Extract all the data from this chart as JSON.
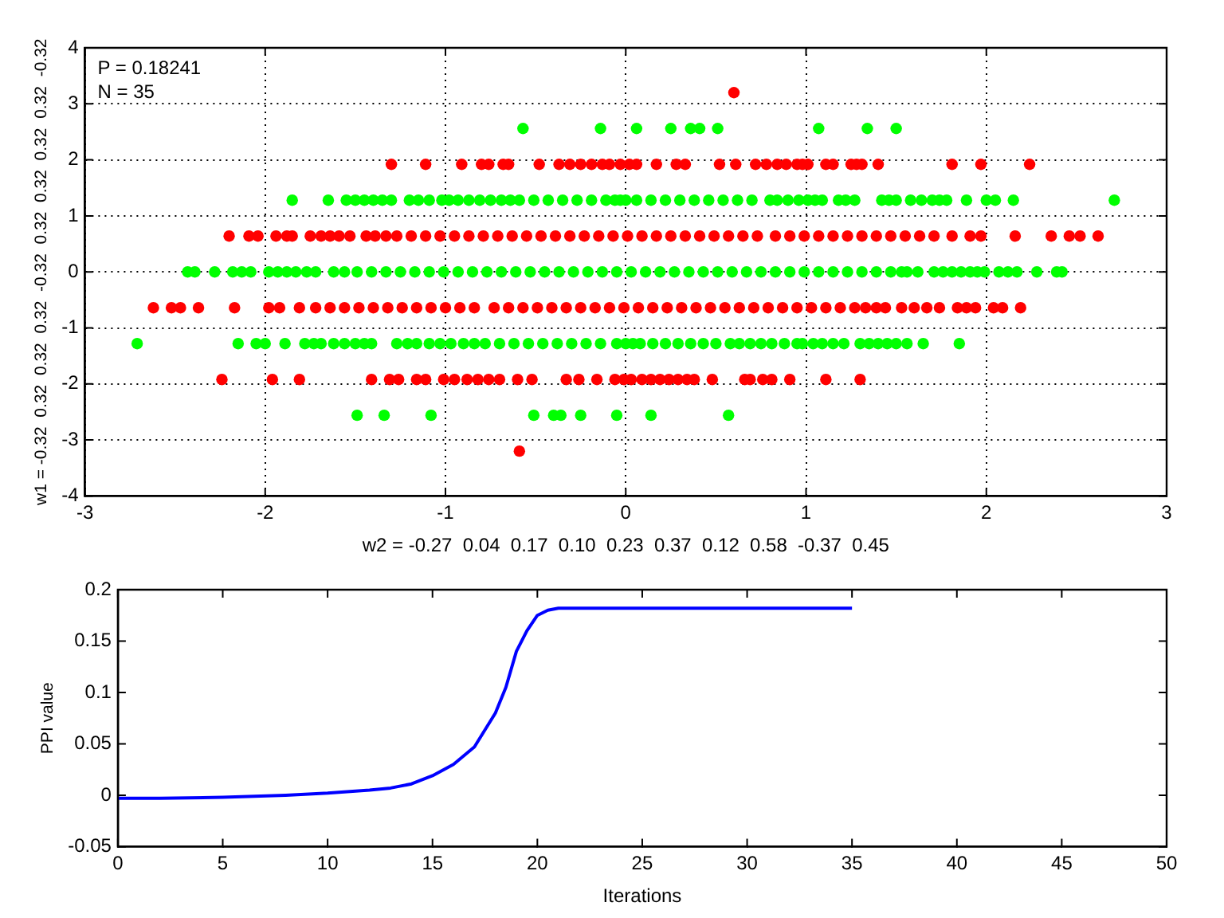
{
  "chart_data": [
    {
      "type": "scatter",
      "xlabel": "w2 = -0.27  0.04  0.17  0.10  0.23  0.37  0.12  0.58  -0.37  0.45",
      "ylabel": "w1 = -0.32  0.32  0.32  0.32  -0.32  0.32  0.32  0.32  0.32  -0.32",
      "annotations": [
        "P = 0.18241",
        "N = 35"
      ],
      "xlim": [
        -3,
        3
      ],
      "xticks": [
        -3,
        -2,
        -1,
        0,
        1,
        2,
        3
      ],
      "ylim": [
        -4,
        4
      ],
      "yticks": [
        -4,
        -3,
        -2,
        -1,
        0,
        1,
        2,
        3,
        4
      ],
      "grid": true,
      "legend": false,
      "marker": "circle",
      "series": [
        {
          "color": "#ff0000",
          "x": [
            0.6
          ],
          "values": [
            3.2
          ]
        },
        {
          "color": "#00ff00",
          "x": [
            -0.57,
            -0.14,
            0.06,
            0.25,
            0.36,
            0.41,
            0.51,
            1.07,
            1.34,
            1.5
          ],
          "values": [
            2.56,
            2.56,
            2.56,
            2.56,
            2.56,
            2.56,
            2.56,
            2.56,
            2.56,
            2.56
          ]
        },
        {
          "color": "#ff0000",
          "x": [
            -1.3,
            -1.11,
            -0.91,
            -0.8,
            -0.76,
            -0.68,
            -0.65,
            -0.48,
            -0.37,
            -0.31,
            -0.25,
            -0.19,
            -0.13,
            -0.09,
            -0.03,
            0.02,
            0.06,
            0.17,
            0.28,
            0.33,
            0.52,
            0.61,
            0.72,
            0.78,
            0.84,
            0.89,
            0.95,
            0.98,
            1.01,
            1.11,
            1.15,
            1.25,
            1.28,
            1.31,
            1.4,
            1.81,
            1.97,
            2.24
          ],
          "values": [
            1.92,
            1.92,
            1.92,
            1.92,
            1.92,
            1.92,
            1.92,
            1.92,
            1.92,
            1.92,
            1.92,
            1.92,
            1.92,
            1.92,
            1.92,
            1.92,
            1.92,
            1.92,
            1.92,
            1.92,
            1.92,
            1.92,
            1.92,
            1.92,
            1.92,
            1.92,
            1.92,
            1.92,
            1.92,
            1.92,
            1.92,
            1.92,
            1.92,
            1.92,
            1.92,
            1.92,
            1.92,
            1.92
          ]
        },
        {
          "color": "#00ff00",
          "x": [
            -1.85,
            -1.65,
            -1.55,
            -1.5,
            -1.45,
            -1.4,
            -1.35,
            -1.3,
            -1.2,
            -1.15,
            -1.09,
            -1.02,
            -0.98,
            -0.93,
            -0.87,
            -0.81,
            -0.75,
            -0.69,
            -0.64,
            -0.59,
            -0.51,
            -0.43,
            -0.35,
            -0.27,
            -0.19,
            -0.11,
            -0.06,
            -0.03,
            0.0,
            0.06,
            0.14,
            0.22,
            0.3,
            0.38,
            0.46,
            0.54,
            0.62,
            0.7,
            0.8,
            0.84,
            0.9,
            0.96,
            1.01,
            1.05,
            1.09,
            1.18,
            1.22,
            1.27,
            1.42,
            1.46,
            1.5,
            1.58,
            1.64,
            1.7,
            1.74,
            1.78,
            1.89,
            2.0,
            2.05,
            2.15,
            2.71
          ],
          "values": [
            1.28,
            1.28,
            1.28,
            1.28,
            1.28,
            1.28,
            1.28,
            1.28,
            1.28,
            1.28,
            1.28,
            1.28,
            1.28,
            1.28,
            1.28,
            1.28,
            1.28,
            1.28,
            1.28,
            1.28,
            1.28,
            1.28,
            1.28,
            1.28,
            1.28,
            1.28,
            1.28,
            1.28,
            1.28,
            1.28,
            1.28,
            1.28,
            1.28,
            1.28,
            1.28,
            1.28,
            1.28,
            1.28,
            1.28,
            1.28,
            1.28,
            1.28,
            1.28,
            1.28,
            1.28,
            1.28,
            1.28,
            1.28,
            1.28,
            1.28,
            1.28,
            1.28,
            1.28,
            1.28,
            1.28,
            1.28,
            1.28,
            1.28,
            1.28,
            1.28,
            1.28
          ]
        },
        {
          "color": "#ff0000",
          "x": [
            -2.2,
            -2.09,
            -2.04,
            -1.94,
            -1.88,
            -1.85,
            -1.75,
            -1.69,
            -1.64,
            -1.59,
            -1.53,
            -1.44,
            -1.39,
            -1.33,
            -1.27,
            -1.19,
            -1.11,
            -1.03,
            -0.95,
            -0.87,
            -0.79,
            -0.71,
            -0.63,
            -0.55,
            -0.47,
            -0.39,
            -0.31,
            -0.23,
            -0.15,
            -0.07,
            0.01,
            0.09,
            0.17,
            0.25,
            0.33,
            0.41,
            0.49,
            0.57,
            0.65,
            0.73,
            0.83,
            0.91,
            0.99,
            1.07,
            1.15,
            1.23,
            1.31,
            1.39,
            1.47,
            1.55,
            1.63,
            1.71,
            1.81,
            1.91,
            1.97,
            2.16,
            2.36,
            2.46,
            2.52,
            2.62
          ],
          "values": [
            0.64,
            0.64,
            0.64,
            0.64,
            0.64,
            0.64,
            0.64,
            0.64,
            0.64,
            0.64,
            0.64,
            0.64,
            0.64,
            0.64,
            0.64,
            0.64,
            0.64,
            0.64,
            0.64,
            0.64,
            0.64,
            0.64,
            0.64,
            0.64,
            0.64,
            0.64,
            0.64,
            0.64,
            0.64,
            0.64,
            0.64,
            0.64,
            0.64,
            0.64,
            0.64,
            0.64,
            0.64,
            0.64,
            0.64,
            0.64,
            0.64,
            0.64,
            0.64,
            0.64,
            0.64,
            0.64,
            0.64,
            0.64,
            0.64,
            0.64,
            0.64,
            0.64,
            0.64,
            0.64,
            0.64,
            0.64,
            0.64,
            0.64,
            0.64,
            0.64
          ]
        },
        {
          "color": "#00ff00",
          "x": [
            -2.43,
            -2.39,
            -2.28,
            -2.18,
            -2.13,
            -2.08,
            -1.98,
            -1.93,
            -1.88,
            -1.83,
            -1.77,
            -1.72,
            -1.62,
            -1.56,
            -1.49,
            -1.41,
            -1.33,
            -1.25,
            -1.17,
            -1.09,
            -1.01,
            -0.93,
            -0.85,
            -0.77,
            -0.69,
            -0.61,
            -0.53,
            -0.45,
            -0.37,
            -0.29,
            -0.21,
            -0.13,
            -0.05,
            0.03,
            0.11,
            0.19,
            0.27,
            0.35,
            0.43,
            0.51,
            0.59,
            0.67,
            0.75,
            0.83,
            0.91,
            0.99,
            1.07,
            1.15,
            1.23,
            1.31,
            1.39,
            1.47,
            1.53,
            1.56,
            1.62,
            1.71,
            1.76,
            1.81,
            1.86,
            1.91,
            1.95,
            1.99,
            2.07,
            2.12,
            2.17,
            2.28,
            2.39,
            2.42
          ],
          "values": [
            0,
            0,
            0,
            0,
            0,
            0,
            0,
            0,
            0,
            0,
            0,
            0,
            0,
            0,
            0,
            0,
            0,
            0,
            0,
            0,
            0,
            0,
            0,
            0,
            0,
            0,
            0,
            0,
            0,
            0,
            0,
            0,
            0,
            0,
            0,
            0,
            0,
            0,
            0,
            0,
            0,
            0,
            0,
            0,
            0,
            0,
            0,
            0,
            0,
            0,
            0,
            0,
            0,
            0,
            0,
            0,
            0,
            0,
            0,
            0,
            0,
            0,
            0,
            0,
            0,
            0,
            0,
            0
          ]
        },
        {
          "color": "#ff0000",
          "x": [
            -2.62,
            -2.52,
            -2.47,
            -2.37,
            -2.17,
            -1.98,
            -1.92,
            -1.81,
            -1.72,
            -1.64,
            -1.56,
            -1.48,
            -1.4,
            -1.32,
            -1.24,
            -1.16,
            -1.08,
            -1.0,
            -0.92,
            -0.84,
            -0.73,
            -0.65,
            -0.57,
            -0.49,
            -0.41,
            -0.33,
            -0.25,
            -0.17,
            -0.09,
            -0.01,
            0.07,
            0.15,
            0.23,
            0.31,
            0.39,
            0.47,
            0.55,
            0.63,
            0.71,
            0.79,
            0.87,
            0.95,
            1.03,
            1.11,
            1.19,
            1.27,
            1.33,
            1.39,
            1.44,
            1.53,
            1.6,
            1.67,
            1.74,
            1.84,
            1.89,
            1.94,
            2.04,
            2.09,
            2.19
          ],
          "values": [
            -0.64,
            -0.64,
            -0.64,
            -0.64,
            -0.64,
            -0.64,
            -0.64,
            -0.64,
            -0.64,
            -0.64,
            -0.64,
            -0.64,
            -0.64,
            -0.64,
            -0.64,
            -0.64,
            -0.64,
            -0.64,
            -0.64,
            -0.64,
            -0.64,
            -0.64,
            -0.64,
            -0.64,
            -0.64,
            -0.64,
            -0.64,
            -0.64,
            -0.64,
            -0.64,
            -0.64,
            -0.64,
            -0.64,
            -0.64,
            -0.64,
            -0.64,
            -0.64,
            -0.64,
            -0.64,
            -0.64,
            -0.64,
            -0.64,
            -0.64,
            -0.64,
            -0.64,
            -0.64,
            -0.64,
            -0.64,
            -0.64,
            -0.64,
            -0.64,
            -0.64,
            -0.64,
            -0.64,
            -0.64,
            -0.64,
            -0.64,
            -0.64,
            -0.64
          ]
        },
        {
          "color": "#00ff00",
          "x": [
            -2.71,
            -2.15,
            -2.05,
            -2.0,
            -1.89,
            -1.78,
            -1.73,
            -1.69,
            -1.62,
            -1.56,
            -1.5,
            -1.45,
            -1.41,
            -1.27,
            -1.21,
            -1.16,
            -1.09,
            -1.03,
            -0.97,
            -0.9,
            -0.84,
            -0.78,
            -0.7,
            -0.62,
            -0.54,
            -0.46,
            -0.38,
            -0.3,
            -0.22,
            -0.14,
            -0.05,
            0.0,
            0.04,
            0.08,
            0.15,
            0.22,
            0.29,
            0.36,
            0.43,
            0.5,
            0.58,
            0.63,
            0.69,
            0.75,
            0.81,
            0.88,
            0.95,
            0.98,
            1.04,
            1.09,
            1.15,
            1.21,
            1.3,
            1.35,
            1.4,
            1.45,
            1.5,
            1.56,
            1.65,
            1.85
          ],
          "values": [
            -1.28,
            -1.28,
            -1.28,
            -1.28,
            -1.28,
            -1.28,
            -1.28,
            -1.28,
            -1.28,
            -1.28,
            -1.28,
            -1.28,
            -1.28,
            -1.28,
            -1.28,
            -1.28,
            -1.28,
            -1.28,
            -1.28,
            -1.28,
            -1.28,
            -1.28,
            -1.28,
            -1.28,
            -1.28,
            -1.28,
            -1.28,
            -1.28,
            -1.28,
            -1.28,
            -1.28,
            -1.28,
            -1.28,
            -1.28,
            -1.28,
            -1.28,
            -1.28,
            -1.28,
            -1.28,
            -1.28,
            -1.28,
            -1.28,
            -1.28,
            -1.28,
            -1.28,
            -1.28,
            -1.28,
            -1.28,
            -1.28,
            -1.28,
            -1.28,
            -1.28,
            -1.28,
            -1.28,
            -1.28,
            -1.28,
            -1.28,
            -1.28,
            -1.28,
            -1.28
          ]
        },
        {
          "color": "#ff0000",
          "x": [
            -2.24,
            -1.96,
            -1.81,
            -1.41,
            -1.31,
            -1.26,
            -1.16,
            -1.11,
            -1.01,
            -0.95,
            -0.88,
            -0.82,
            -0.76,
            -0.7,
            -0.6,
            -0.52,
            -0.33,
            -0.26,
            -0.16,
            -0.06,
            -0.01,
            0.03,
            0.09,
            0.14,
            0.19,
            0.24,
            0.29,
            0.34,
            0.38,
            0.48,
            0.66,
            0.69,
            0.76,
            0.81,
            0.91,
            1.11,
            1.3
          ],
          "values": [
            -1.92,
            -1.92,
            -1.92,
            -1.92,
            -1.92,
            -1.92,
            -1.92,
            -1.92,
            -1.92,
            -1.92,
            -1.92,
            -1.92,
            -1.92,
            -1.92,
            -1.92,
            -1.92,
            -1.92,
            -1.92,
            -1.92,
            -1.92,
            -1.92,
            -1.92,
            -1.92,
            -1.92,
            -1.92,
            -1.92,
            -1.92,
            -1.92,
            -1.92,
            -1.92,
            -1.92,
            -1.92,
            -1.92,
            -1.92,
            -1.92,
            -1.92,
            -1.92
          ]
        },
        {
          "color": "#00ff00",
          "x": [
            -1.49,
            -1.34,
            -1.08,
            -0.51,
            -0.4,
            -0.36,
            -0.25,
            -0.05,
            0.14,
            0.57
          ],
          "values": [
            -2.56,
            -2.56,
            -2.56,
            -2.56,
            -2.56,
            -2.56,
            -2.56,
            -2.56,
            -2.56,
            -2.56
          ]
        },
        {
          "color": "#ff0000",
          "x": [
            -0.59
          ],
          "values": [
            -3.2
          ]
        }
      ]
    },
    {
      "type": "line",
      "xlabel": "Iterations",
      "ylabel": "PPI value",
      "xlim": [
        0,
        50
      ],
      "xticks": [
        0,
        5,
        10,
        15,
        20,
        25,
        30,
        35,
        40,
        45,
        50
      ],
      "ylim": [
        -0.05,
        0.2
      ],
      "yticks": [
        -0.05,
        0,
        0.05,
        0.1,
        0.15,
        0.2
      ],
      "legend": false,
      "marker": "none",
      "line_style": "solid",
      "x": [
        0,
        2,
        5,
        8,
        10,
        12,
        13,
        14,
        15,
        16,
        17,
        18,
        18.5,
        19,
        19.5,
        20,
        20.5,
        21,
        35
      ],
      "series": [
        {
          "color": "#0000ff",
          "values": [
            -0.003,
            -0.003,
            -0.002,
            0,
            0.002,
            0.005,
            0.007,
            0.011,
            0.019,
            0.03,
            0.047,
            0.08,
            0.105,
            0.14,
            0.16,
            0.175,
            0.18,
            0.182,
            0.182
          ]
        }
      ]
    }
  ]
}
